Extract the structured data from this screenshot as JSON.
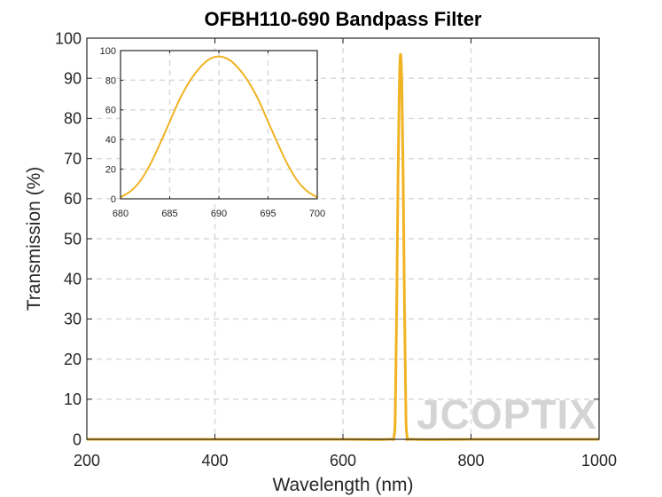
{
  "chart_data": [
    {
      "type": "line",
      "title": "OFBH110-690 Bandpass Filter",
      "xlabel": "Wavelength (nm)",
      "ylabel": "Transmission (%)",
      "xlim": [
        200,
        1000
      ],
      "ylim": [
        0,
        100
      ],
      "xticks": [
        200,
        400,
        600,
        800,
        1000
      ],
      "yticks": [
        0,
        10,
        20,
        30,
        40,
        50,
        60,
        70,
        80,
        90,
        100
      ],
      "grid": true,
      "line_color": "#f0b323",
      "x": [
        200,
        400,
        600,
        670,
        680,
        682,
        684,
        686,
        688,
        690,
        692,
        694,
        696,
        698,
        700,
        710,
        800,
        1000
      ],
      "y": [
        0,
        0,
        0,
        0,
        1,
        10,
        34,
        65,
        88,
        96,
        88,
        65,
        34,
        10,
        1,
        0,
        0,
        0
      ]
    },
    {
      "type": "line",
      "title": "",
      "xlabel": "",
      "ylabel": "",
      "xlim": [
        680,
        700
      ],
      "ylim": [
        0,
        100
      ],
      "xticks": [
        680,
        685,
        690,
        695,
        700
      ],
      "yticks": [
        0,
        20,
        40,
        60,
        80,
        100
      ],
      "grid": true,
      "line_color": "#f0b323",
      "x": [
        680,
        681,
        682,
        683,
        684,
        685,
        686,
        687,
        688,
        689,
        690,
        691,
        692,
        693,
        694,
        695,
        696,
        697,
        698,
        699,
        700
      ],
      "y": [
        1,
        5,
        12,
        23,
        37,
        52,
        67,
        79,
        88,
        94,
        96,
        94,
        88,
        79,
        67,
        52,
        37,
        23,
        12,
        5,
        1
      ]
    }
  ],
  "watermark": "JCOPTIX"
}
